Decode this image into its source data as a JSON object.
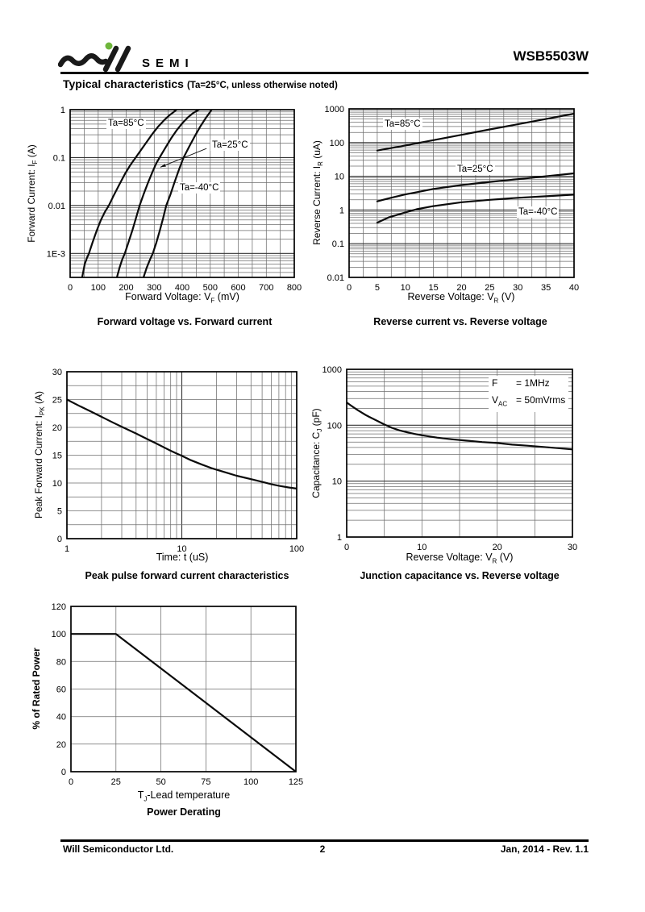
{
  "header": {
    "brand": "SEMI",
    "part_number": "WSB5503W",
    "logo_dot_color": "#6fb63c"
  },
  "title": {
    "main": "Typical characteristics",
    "note": "(Ta=25°C, unless otherwise noted)"
  },
  "footer": {
    "company": "Will Semiconductor Ltd.",
    "page": "2",
    "revision": "Jan, 2014 - Rev. 1.1"
  },
  "chart_data": [
    {
      "id": "forward-voltage-vs-forward-current",
      "type": "line",
      "caption": "Forward voltage vs. Forward current",
      "x": {
        "scale": "linear",
        "min": 0,
        "max": 800,
        "grid_step": 50,
        "ticks": [
          0,
          100,
          200,
          300,
          400,
          500,
          600,
          700,
          800
        ],
        "tick_labels": [
          "0",
          "100",
          "200",
          "300",
          "400",
          "500",
          "600",
          "700",
          "800"
        ],
        "label": [
          "Forward Voltage: V",
          "F",
          " (mV)"
        ]
      },
      "y": {
        "scale": "log",
        "min": 0.000316,
        "max": 1,
        "ticks": [
          1,
          0.1,
          0.01,
          0.001
        ],
        "tick_labels": [
          "1",
          "0.1",
          "0.01",
          "1E-3"
        ],
        "label": [
          "Forward Current: I",
          "F",
          " (A)"
        ]
      },
      "series": [
        {
          "name": "Ta=85°C",
          "points": [
            [
              43,
              0.000316
            ],
            [
              52,
              0.0006
            ],
            [
              60,
              0.0008
            ],
            [
              67,
              0.001
            ],
            [
              80,
              0.0017
            ],
            [
              95,
              0.003
            ],
            [
              110,
              0.005
            ],
            [
              125,
              0.0075
            ],
            [
              138,
              0.01
            ],
            [
              155,
              0.016
            ],
            [
              175,
              0.027
            ],
            [
              195,
              0.045
            ],
            [
              215,
              0.07
            ],
            [
              234,
              0.1
            ],
            [
              255,
              0.15
            ],
            [
              275,
              0.22
            ],
            [
              295,
              0.32
            ],
            [
              315,
              0.45
            ],
            [
              335,
              0.6
            ],
            [
              355,
              0.77
            ],
            [
              370,
              0.9
            ],
            [
              380,
              1.0
            ]
          ]
        },
        {
          "name": "Ta=25°C",
          "points": [
            [
              167,
              0.000316
            ],
            [
              176,
              0.0005
            ],
            [
              186,
              0.00075
            ],
            [
              195,
              0.001
            ],
            [
              208,
              0.0017
            ],
            [
              222,
              0.003
            ],
            [
              235,
              0.0055
            ],
            [
              248,
              0.01
            ],
            [
              262,
              0.017
            ],
            [
              278,
              0.03
            ],
            [
              295,
              0.052
            ],
            [
              307,
              0.075
            ],
            [
              319,
              0.1
            ],
            [
              340,
              0.16
            ],
            [
              360,
              0.25
            ],
            [
              380,
              0.37
            ],
            [
              400,
              0.52
            ],
            [
              420,
              0.69
            ],
            [
              440,
              0.86
            ],
            [
              460,
              1.0
            ]
          ]
        },
        {
          "name": "Ta=-40°C",
          "points": [
            [
              262,
              0.000316
            ],
            [
              273,
              0.0005
            ],
            [
              284,
              0.00072
            ],
            [
              295,
              0.001
            ],
            [
              308,
              0.0017
            ],
            [
              320,
              0.003
            ],
            [
              332,
              0.0055
            ],
            [
              343,
              0.01
            ],
            [
              358,
              0.017
            ],
            [
              372,
              0.03
            ],
            [
              388,
              0.055
            ],
            [
              405,
              0.1
            ],
            [
              425,
              0.17
            ],
            [
              445,
              0.28
            ],
            [
              465,
              0.45
            ],
            [
              482,
              0.64
            ],
            [
              495,
              0.82
            ],
            [
              505,
              1.0
            ]
          ]
        }
      ],
      "pointer": {
        "from": [
          487,
          0.155
        ],
        "to": [
          322,
          0.063
        ]
      }
    },
    {
      "id": "reverse-current-vs-reverse-voltage",
      "type": "line",
      "caption": "Reverse current vs. Reverse voltage",
      "x": {
        "scale": "linear",
        "min": 0,
        "max": 40,
        "grid_step": 2.5,
        "ticks": [
          0,
          5,
          10,
          15,
          20,
          25,
          30,
          35,
          40
        ],
        "tick_labels": [
          "0",
          "5",
          "10",
          "15",
          "20",
          "25",
          "30",
          "35",
          "40"
        ],
        "label": [
          "Reverse Voltage: V",
          "R",
          " (V)"
        ]
      },
      "y": {
        "scale": "log",
        "min": 0.01,
        "max": 1000,
        "ticks": [
          1000,
          100,
          10,
          1,
          0.1,
          0.01
        ],
        "tick_labels": [
          "1000",
          "100",
          "10",
          "1",
          "0.1",
          "0.01"
        ],
        "label": [
          "Reverse Current: I",
          "R",
          " (uA)"
        ]
      },
      "series": [
        {
          "name": "Ta=85°C",
          "points": [
            [
              5,
              58
            ],
            [
              10,
              82
            ],
            [
              15,
              118
            ],
            [
              20,
              170
            ],
            [
              25,
              245
            ],
            [
              30,
              350
            ],
            [
              35,
              500
            ],
            [
              40,
              720
            ]
          ]
        },
        {
          "name": "Ta=25°C",
          "points": [
            [
              5,
              1.8
            ],
            [
              7,
              2.2
            ],
            [
              10,
              2.9
            ],
            [
              15,
              4.2
            ],
            [
              20,
              5.5
            ],
            [
              25,
              6.8
            ],
            [
              30,
              8.2
            ],
            [
              35,
              10
            ],
            [
              40,
              12.2
            ]
          ]
        },
        {
          "name": "Ta=-40°C",
          "points": [
            [
              5,
              0.42
            ],
            [
              7,
              0.6
            ],
            [
              10,
              0.85
            ],
            [
              12,
              1.05
            ],
            [
              15,
              1.3
            ],
            [
              20,
              1.7
            ],
            [
              25,
              2.0
            ],
            [
              30,
              2.3
            ],
            [
              35,
              2.55
            ],
            [
              40,
              2.85
            ]
          ]
        }
      ]
    },
    {
      "id": "peak-pulse-forward-current",
      "type": "line",
      "caption": "Peak pulse forward current characteristics",
      "x": {
        "scale": "log",
        "min": 1,
        "max": 100,
        "ticks": [
          1,
          10,
          100
        ],
        "tick_labels": [
          "1",
          "10",
          "100"
        ],
        "label": [
          "Time: t (uS)",
          "",
          ""
        ]
      },
      "y": {
        "scale": "linear",
        "min": 0,
        "max": 30,
        "grid_step": 2.5,
        "ticks": [
          0,
          5,
          10,
          15,
          20,
          25,
          30
        ],
        "tick_labels": [
          "0",
          "5",
          "10",
          "15",
          "20",
          "25",
          "30"
        ],
        "label": [
          "Peak Forward Current: I",
          "PK",
          " (A)"
        ]
      },
      "series": [
        {
          "name": "IPK",
          "points": [
            [
              1,
              25
            ],
            [
              1.3,
              23.8
            ],
            [
              1.6,
              22.9
            ],
            [
              2,
              21.9
            ],
            [
              2.5,
              20.9
            ],
            [
              3,
              20.1
            ],
            [
              4,
              18.9
            ],
            [
              5,
              17.9
            ],
            [
              6,
              17.1
            ],
            [
              7,
              16.4
            ],
            [
              8,
              15.8
            ],
            [
              9,
              15.3
            ],
            [
              10,
              14.9
            ],
            [
              12,
              14.1
            ],
            [
              15,
              13.3
            ],
            [
              18,
              12.7
            ],
            [
              20,
              12.4
            ],
            [
              25,
              11.8
            ],
            [
              30,
              11.3
            ],
            [
              40,
              10.7
            ],
            [
              50,
              10.2
            ],
            [
              60,
              9.8
            ],
            [
              70,
              9.5
            ],
            [
              85,
              9.2
            ],
            [
              100,
              9.0
            ]
          ]
        }
      ]
    },
    {
      "id": "junction-capacitance-vs-reverse-voltage",
      "type": "line",
      "caption": "Junction capacitance vs. Reverse voltage",
      "x": {
        "scale": "linear",
        "min": 0,
        "max": 30,
        "grid_step": 5,
        "ticks": [
          0,
          10,
          20,
          30
        ],
        "tick_labels": [
          "0",
          "10",
          "20",
          "30"
        ],
        "label": [
          "Reverse Voltage: V",
          "R",
          " (V)"
        ]
      },
      "y": {
        "scale": "log",
        "min": 1,
        "max": 1000,
        "ticks": [
          1000,
          100,
          10,
          1
        ],
        "tick_labels": [
          "1000",
          "100",
          "10",
          "1"
        ],
        "label": [
          "Capacitance: C",
          "J",
          " (pF)"
        ]
      },
      "conditions": [
        {
          "name": "F",
          "sub": "",
          "value": "= 1MHz"
        },
        {
          "name": "V",
          "sub": "AC",
          "value": "= 50mVrms"
        }
      ],
      "series": [
        {
          "name": "CJ",
          "points": [
            [
              0,
              255
            ],
            [
              0.5,
              228
            ],
            [
              1,
              205
            ],
            [
              1.5,
              185
            ],
            [
              2,
              168
            ],
            [
              2.5,
              153
            ],
            [
              3,
              141
            ],
            [
              4,
              121
            ],
            [
              5,
              103
            ],
            [
              6,
              90
            ],
            [
              7,
              81
            ],
            [
              8,
              75
            ],
            [
              9,
              70
            ],
            [
              10,
              66
            ],
            [
              12,
              60
            ],
            [
              14,
              56
            ],
            [
              16,
              53
            ],
            [
              18,
              50
            ],
            [
              20,
              48
            ],
            [
              22,
              45
            ],
            [
              24,
              43
            ],
            [
              26,
              41
            ],
            [
              28,
              39
            ],
            [
              30,
              37
            ]
          ]
        }
      ]
    },
    {
      "id": "power-derating",
      "type": "line",
      "caption": "Power Derating",
      "x": {
        "scale": "linear",
        "min": 0,
        "max": 125,
        "grid_step": 25,
        "ticks": [
          0,
          25,
          50,
          75,
          100,
          125
        ],
        "tick_labels": [
          "0",
          "25",
          "50",
          "75",
          "100",
          "125"
        ],
        "label": [
          "T",
          "J",
          "-Lead temperature"
        ]
      },
      "y": {
        "scale": "linear",
        "min": 0,
        "max": 120,
        "grid_step": 20,
        "ticks": [
          0,
          20,
          40,
          60,
          80,
          100,
          120
        ],
        "tick_labels": [
          "0",
          "20",
          "40",
          "60",
          "80",
          "100",
          "120"
        ],
        "label": [
          "% of Rated Power",
          "",
          ""
        ]
      },
      "series": [
        {
          "name": "rated-power",
          "points": [
            [
              0,
              100
            ],
            [
              25,
              100
            ],
            [
              125,
              0
            ]
          ]
        }
      ]
    }
  ]
}
